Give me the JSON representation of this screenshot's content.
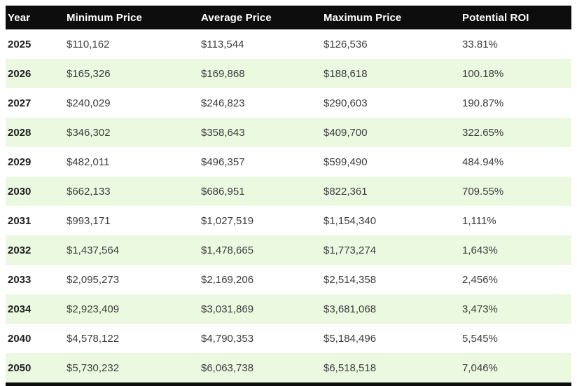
{
  "colors": {
    "header_bg": "#0d0d0d",
    "header_text": "#ffffff",
    "stripe_green": "#ebf9e1",
    "text": "#3d3d3d",
    "year_text": "#1f1f1f"
  },
  "chart_data": {
    "type": "table",
    "columns": [
      "Year",
      "Minimum Price",
      "Average Price",
      "Maximum Price",
      "Potential ROI"
    ],
    "rows": [
      [
        "2025",
        "$110,162",
        "$113,544",
        "$126,536",
        "33.81%"
      ],
      [
        "2026",
        "$165,326",
        "$169,868",
        "$188,618",
        "100.18%"
      ],
      [
        "2027",
        "$240,029",
        "$246,823",
        "$290,603",
        "190.87%"
      ],
      [
        "2028",
        "$346,302",
        "$358,643",
        "$409,700",
        "322.65%"
      ],
      [
        "2029",
        "$482,011",
        "$496,357",
        "$599,490",
        "484.94%"
      ],
      [
        "2030",
        "$662,133",
        "$686,951",
        "$822,361",
        "709.55%"
      ],
      [
        "2031",
        "$993,171",
        "$1,027,519",
        "$1,154,340",
        "1,111%"
      ],
      [
        "2032",
        "$1,437,564",
        "$1,478,665",
        "$1,773,274",
        "1,643%"
      ],
      [
        "2033",
        "$2,095,273",
        "$2,169,206",
        "$2,514,358",
        "2,456%"
      ],
      [
        "2034",
        "$2,923,409",
        "$3,031,869",
        "$3,681,068",
        "3,473%"
      ],
      [
        "2040",
        "$4,578,122",
        "$4,790,353",
        "$5,184,496",
        "5,545%"
      ],
      [
        "2050",
        "$5,730,232",
        "$6,063,738",
        "$6,518,518",
        "7,046%"
      ]
    ],
    "striped_row_indices": [
      1,
      3,
      5,
      7,
      9,
      11
    ],
    "layout": "header row black, data rows alternate white / light green, bottom shows cut-off next section header bar"
  }
}
